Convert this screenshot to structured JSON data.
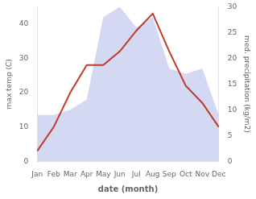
{
  "chart_data": {
    "type": "line",
    "xlabel": "date (month)",
    "ylabel": "max temp (C)",
    "y2label": "med. precipitation (kg/m2)",
    "categories": [
      "Jan",
      "Feb",
      "Mar",
      "Apr",
      "May",
      "Jun",
      "Jul",
      "Aug",
      "Sep",
      "Oct",
      "Nov",
      "Dec"
    ],
    "series": [
      {
        "type": "area",
        "axis": "y2",
        "color": "#b0b8e8",
        "values": [
          9,
          9,
          10,
          12,
          28,
          30,
          26,
          28,
          18,
          17,
          18,
          9
        ]
      },
      {
        "type": "line",
        "color": "#c0392b",
        "values": [
          3,
          10,
          20,
          28,
          28,
          32,
          38,
          43,
          32,
          22,
          17,
          10
        ]
      }
    ],
    "ylim": [
      0,
      45
    ],
    "yticks": [
      0,
      10,
      20,
      30,
      40
    ],
    "y2lim": [
      0,
      30
    ],
    "y2ticks": [
      0,
      5,
      10,
      15,
      20,
      25,
      30
    ],
    "grid": false
  }
}
